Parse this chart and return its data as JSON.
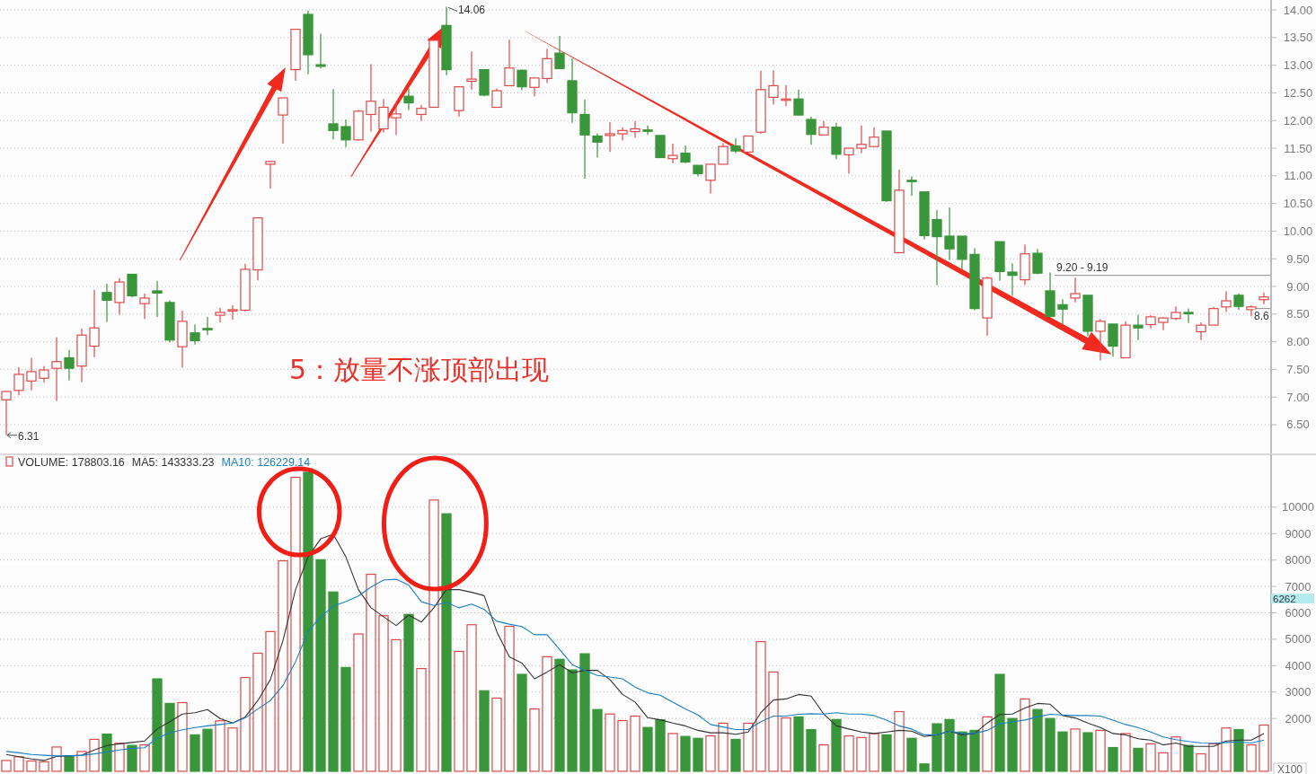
{
  "chart_data": [
    {
      "type": "candlestick",
      "categories": [
        null,
        null,
        null,
        null,
        null,
        null,
        null,
        null,
        null,
        null,
        null,
        null,
        null,
        null,
        null,
        null,
        null,
        null,
        null,
        null,
        null,
        null,
        null,
        null,
        null,
        null,
        null,
        null,
        null,
        null,
        null,
        null,
        null,
        null,
        null,
        null,
        null,
        null,
        null,
        null,
        null,
        null,
        null,
        null,
        null,
        null,
        null,
        null,
        null,
        null,
        null,
        null,
        null,
        null,
        null,
        null,
        null,
        null,
        null,
        null,
        null,
        null,
        null,
        null,
        null,
        null,
        null,
        null,
        null,
        null,
        null,
        null,
        null,
        null,
        null,
        null,
        null,
        null,
        null,
        null,
        null,
        null,
        null,
        null,
        null,
        null,
        null,
        null,
        null,
        null,
        null,
        null,
        null,
        null,
        null,
        null,
        null,
        null,
        null,
        null,
        null
      ],
      "ohlc": [
        [
          6.95,
          7.1,
          6.31,
          7.1
        ],
        [
          7.12,
          7.54,
          7.03,
          7.41
        ],
        [
          7.29,
          7.71,
          7.12,
          7.46
        ],
        [
          7.34,
          7.56,
          7.26,
          7.49
        ],
        [
          7.52,
          8.08,
          6.93,
          7.64
        ],
        [
          7.71,
          7.85,
          7.3,
          7.52
        ],
        [
          7.56,
          8.24,
          7.27,
          8.12
        ],
        [
          7.92,
          8.94,
          7.72,
          8.25
        ],
        [
          8.89,
          9.05,
          8.36,
          8.75
        ],
        [
          8.71,
          9.15,
          8.49,
          9.08
        ],
        [
          9.22,
          9.22,
          8.8,
          8.83
        ],
        [
          8.69,
          8.87,
          8.41,
          8.79
        ],
        [
          8.92,
          9.1,
          8.45,
          8.88
        ],
        [
          8.71,
          8.75,
          7.99,
          8.03
        ],
        [
          7.91,
          8.56,
          7.53,
          8.37
        ],
        [
          8.16,
          8.31,
          7.95,
          8.02
        ],
        [
          8.24,
          8.45,
          8.12,
          8.23
        ],
        [
          8.48,
          8.61,
          8.35,
          8.53
        ],
        [
          8.57,
          8.66,
          8.4,
          8.58
        ],
        [
          8.57,
          9.41,
          8.55,
          9.31
        ],
        [
          9.3,
          10.24,
          9.11,
          10.24
        ],
        [
          11.21,
          11.26,
          10.77,
          11.26
        ],
        [
          12.1,
          12.41,
          11.58,
          12.41
        ],
        [
          12.92,
          13.65,
          12.72,
          13.65
        ],
        [
          13.92,
          13.99,
          12.84,
          13.19
        ],
        [
          13.01,
          13.57,
          12.94,
          12.98
        ],
        [
          11.94,
          12.57,
          11.66,
          11.82
        ],
        [
          11.89,
          12.02,
          11.52,
          11.65
        ],
        [
          11.65,
          12.19,
          11.64,
          12.17
        ],
        [
          12.11,
          13.02,
          11.8,
          12.35
        ],
        [
          11.85,
          12.39,
          11.78,
          12.24
        ],
        [
          12.05,
          12.31,
          11.74,
          12.12
        ],
        [
          12.44,
          12.58,
          12.19,
          12.32
        ],
        [
          12.11,
          12.28,
          11.99,
          12.22
        ],
        [
          12.24,
          13.45,
          12.24,
          13.45
        ],
        [
          13.72,
          14.06,
          12.82,
          12.92
        ],
        [
          12.18,
          12.61,
          12.07,
          12.61
        ],
        [
          12.71,
          13.25,
          12.56,
          12.75
        ],
        [
          12.92,
          12.92,
          12.44,
          12.46
        ],
        [
          12.24,
          12.58,
          12.24,
          12.54
        ],
        [
          12.63,
          13.46,
          12.63,
          12.95
        ],
        [
          12.91,
          12.92,
          12.55,
          12.61
        ],
        [
          12.6,
          12.77,
          12.44,
          12.77
        ],
        [
          12.76,
          13.3,
          12.68,
          13.12
        ],
        [
          13.22,
          13.53,
          12.94,
          12.94
        ],
        [
          12.72,
          13.12,
          11.96,
          12.14
        ],
        [
          12.11,
          12.38,
          10.95,
          11.74
        ],
        [
          11.72,
          11.77,
          11.33,
          11.61
        ],
        [
          11.73,
          11.97,
          11.43,
          11.76
        ],
        [
          11.76,
          11.88,
          11.64,
          11.82
        ],
        [
          11.8,
          11.99,
          11.69,
          11.85
        ],
        [
          11.83,
          11.91,
          11.74,
          11.82
        ],
        [
          11.73,
          11.73,
          11.33,
          11.33
        ],
        [
          11.31,
          11.58,
          11.23,
          11.37
        ],
        [
          11.41,
          11.55,
          11.23,
          11.25
        ],
        [
          11.19,
          11.19,
          10.99,
          11.04
        ],
        [
          10.92,
          11.21,
          10.68,
          11.21
        ],
        [
          11.21,
          11.59,
          11.21,
          11.53
        ],
        [
          11.54,
          11.68,
          11.41,
          11.45
        ],
        [
          11.43,
          11.72,
          11.43,
          11.72
        ],
        [
          11.79,
          12.9,
          11.76,
          12.56
        ],
        [
          12.42,
          12.91,
          12.29,
          12.63
        ],
        [
          12.37,
          12.64,
          12.26,
          12.39
        ],
        [
          12.39,
          12.56,
          12.09,
          12.1
        ],
        [
          12.02,
          12.07,
          11.56,
          11.75
        ],
        [
          11.74,
          11.99,
          11.74,
          11.88
        ],
        [
          11.88,
          11.96,
          11.3,
          11.39
        ],
        [
          11.38,
          11.5,
          11.04,
          11.5
        ],
        [
          11.5,
          11.91,
          11.41,
          11.57
        ],
        [
          11.53,
          11.88,
          11.53,
          11.7
        ],
        [
          11.81,
          11.81,
          10.53,
          10.55
        ],
        [
          9.61,
          11.11,
          9.61,
          10.74
        ],
        [
          10.92,
          10.99,
          10.64,
          10.9
        ],
        [
          10.71,
          10.71,
          9.85,
          9.92
        ],
        [
          10.21,
          10.38,
          9.02,
          9.9
        ],
        [
          9.91,
          10.43,
          9.48,
          9.68
        ],
        [
          9.91,
          9.91,
          9.31,
          9.49
        ],
        [
          9.58,
          9.69,
          8.57,
          8.6
        ],
        [
          8.43,
          9.18,
          8.11,
          9.15
        ],
        [
          9.81,
          9.81,
          9.1,
          9.27
        ],
        [
          9.26,
          9.42,
          8.83,
          9.2
        ],
        [
          9.12,
          9.76,
          9.03,
          9.59
        ],
        [
          9.6,
          9.68,
          9.22,
          9.24
        ],
        [
          8.92,
          9.25,
          8.46,
          8.46
        ],
        [
          8.67,
          8.77,
          8.31,
          8.59
        ],
        [
          8.79,
          9.16,
          8.71,
          8.87
        ],
        [
          8.84,
          8.84,
          8.1,
          8.19
        ],
        [
          8.19,
          8.41,
          7.66,
          8.37
        ],
        [
          8.32,
          8.32,
          7.73,
          7.92
        ],
        [
          7.71,
          8.37,
          7.71,
          8.3
        ],
        [
          8.3,
          8.49,
          8.03,
          8.25
        ],
        [
          8.31,
          8.48,
          8.24,
          8.45
        ],
        [
          8.35,
          8.45,
          8.21,
          8.43
        ],
        [
          8.42,
          8.64,
          8.39,
          8.53
        ],
        [
          8.53,
          8.6,
          8.34,
          8.51
        ],
        [
          8.18,
          8.35,
          8.03,
          8.3
        ],
        [
          8.3,
          8.63,
          8.3,
          8.6
        ],
        [
          8.63,
          8.91,
          8.54,
          8.74
        ],
        [
          8.84,
          8.87,
          8.58,
          8.64
        ],
        [
          8.58,
          8.66,
          8.46,
          8.63
        ],
        [
          8.76,
          8.89,
          8.68,
          8.81
        ]
      ],
      "ylim": [
        5.98,
        14.18
      ],
      "yticks": [
        {
          "value": 6.5,
          "label": "6.50"
        },
        {
          "value": 7,
          "label": "7.00"
        },
        {
          "value": 7.5,
          "label": "7.50"
        },
        {
          "value": 8,
          "label": "8.00"
        },
        {
          "value": 8.5,
          "label": "8.50"
        },
        {
          "value": 9,
          "label": "9.00"
        },
        {
          "value": 9.5,
          "label": "9.50"
        },
        {
          "value": 10,
          "label": "10.00"
        },
        {
          "value": 10.5,
          "label": "10.50"
        },
        {
          "value": 11,
          "label": "11.00"
        },
        {
          "value": 11.5,
          "label": "11.50"
        },
        {
          "value": 12,
          "label": "12.00"
        },
        {
          "value": 12.5,
          "label": "12.50"
        },
        {
          "value": 13,
          "label": "13.00"
        },
        {
          "value": 13.5,
          "label": "13.50"
        },
        {
          "value": 14,
          "label": "14.00"
        }
      ],
      "grid": "y",
      "ref_lines": [
        {
          "axis": "y",
          "value": 9.2,
          "label": "9.20 - 9.19"
        },
        {
          "axis": "y",
          "value": 8.6,
          "label": "8.6"
        }
      ],
      "annotations": [
        "5：放量不涨顶部出现",
        "14.06",
        "6.31"
      ]
    },
    {
      "type": "bar",
      "categories": [
        null,
        null,
        null,
        null,
        null,
        null,
        null,
        null,
        null,
        null,
        null,
        null,
        null,
        null,
        null,
        null,
        null,
        null,
        null,
        null,
        null,
        null,
        null,
        null,
        null,
        null,
        null,
        null,
        null,
        null,
        null,
        null,
        null,
        null,
        null,
        null,
        null,
        null,
        null,
        null,
        null,
        null,
        null,
        null,
        null,
        null,
        null,
        null,
        null,
        null,
        null,
        null,
        null,
        null,
        null,
        null,
        null,
        null,
        null,
        null,
        null,
        null,
        null,
        null,
        null,
        null,
        null,
        null,
        null,
        null,
        null,
        null,
        null,
        null,
        null,
        null,
        null,
        null,
        null,
        null,
        null,
        null,
        null,
        null,
        null,
        null,
        null,
        null,
        null,
        null,
        null,
        null,
        null,
        null,
        null,
        null,
        null,
        null,
        null,
        null,
        null
      ],
      "series": [
        {
          "name": "VOLUME: 178803.16",
          "type": "bar",
          "colors": [
            "#e04848",
            "#e04848",
            "#e04848",
            "#e04848",
            "#e04848",
            "#3a963a",
            "#e04848",
            "#e04848",
            "#3a963a",
            "#e04848",
            "#3a963a",
            "#e04848",
            "#3a963a",
            "#3a963a",
            "#e04848",
            "#3a963a",
            "#3a963a",
            "#e04848",
            "#e04848",
            "#e04848",
            "#e04848",
            "#e04848",
            "#e04848",
            "#e04848",
            "#3a963a",
            "#3a963a",
            "#3a963a",
            "#3a963a",
            "#e04848",
            "#e04848",
            "#e04848",
            "#e04848",
            "#3a963a",
            "#e04848",
            "#e04848",
            "#3a963a",
            "#e04848",
            "#e04848",
            "#3a963a",
            "#e04848",
            "#e04848",
            "#3a963a",
            "#e04848",
            "#e04848",
            "#3a963a",
            "#3a963a",
            "#3a963a",
            "#3a963a",
            "#e04848",
            "#e04848",
            "#e04848",
            "#3a963a",
            "#3a963a",
            "#e04848",
            "#3a963a",
            "#3a963a",
            "#e04848",
            "#e04848",
            "#3a963a",
            "#e04848",
            "#e04848",
            "#e04848",
            "#e04848",
            "#3a963a",
            "#3a963a",
            "#e04848",
            "#3a963a",
            "#e04848",
            "#e04848",
            "#e04848",
            "#3a963a",
            "#e04848",
            "#3a963a",
            "#3a963a",
            "#3a963a",
            "#3a963a",
            "#3a963a",
            "#3a963a",
            "#e04848",
            "#3a963a",
            "#3a963a",
            "#e04848",
            "#3a963a",
            "#3a963a",
            "#3a963a",
            "#e04848",
            "#3a963a",
            "#e04848",
            "#3a963a",
            "#e04848",
            "#3a963a",
            "#e04848",
            "#e04848",
            "#e04848",
            "#3a963a",
            "#e04848",
            "#e04848",
            "#e04848",
            "#3a963a",
            "#e04848",
            "#e04848"
          ],
          "values": [
            410,
            550,
            390,
            360,
            920,
            580,
            750,
            1210,
            1410,
            1060,
            980,
            1000,
            3500,
            2570,
            2600,
            1380,
            1590,
            1910,
            1640,
            3550,
            4470,
            5290,
            7970,
            11130,
            11320,
            8010,
            6790,
            3930,
            5200,
            7460,
            5890,
            4980,
            5940,
            3890,
            10270,
            9750,
            4540,
            5550,
            3050,
            2770,
            5490,
            3670,
            2360,
            4340,
            4240,
            3840,
            4450,
            2340,
            2170,
            1920,
            2090,
            1660,
            1950,
            1430,
            1320,
            1250,
            1340,
            1820,
            1210,
            1820,
            4910,
            3760,
            2020,
            2060,
            1580,
            1000,
            1960,
            1340,
            1280,
            1430,
            1380,
            2260,
            1250,
            280,
            1800,
            1960,
            1490,
            1550,
            2060,
            3670,
            2000,
            2740,
            2340,
            2000,
            1490,
            1600,
            1460,
            1550,
            900,
            1430,
            870,
            1040,
            700,
            1300,
            980,
            660,
            1040,
            1640,
            1580,
            1000,
            1750
          ]
        },
        {
          "name": "MA5: 143333.23",
          "type": "line",
          "color": "#333333",
          "values": [
            640,
            550,
            470,
            410,
            560,
            580,
            610,
            810,
            980,
            1040,
            1090,
            1150,
            1600,
            1880,
            2170,
            2220,
            2340,
            2000,
            1830,
            2060,
            2680,
            3470,
            4950,
            6880,
            8120,
            8800,
            8970,
            8120,
            6880,
            6190,
            5850,
            5520,
            5920,
            5650,
            6190,
            6880,
            6880,
            6780,
            6650,
            5290,
            4330,
            4100,
            3500,
            3760,
            4040,
            3730,
            3820,
            3820,
            3470,
            2910,
            2620,
            2030,
            1950,
            1830,
            1720,
            1550,
            1460,
            1460,
            1400,
            1490,
            2220,
            2700,
            2740,
            2910,
            2850,
            2170,
            1720,
            1600,
            1490,
            1430,
            1490,
            1550,
            1520,
            1320,
            1380,
            1520,
            1380,
            1430,
            1830,
            2150,
            2170,
            2400,
            2570,
            2540,
            2110,
            2020,
            1830,
            1660,
            1430,
            1380,
            1230,
            1180,
            1000,
            1070,
            940,
            940,
            940,
            1150,
            1180,
            1180,
            1430
          ]
        },
        {
          "name": "MA10: 126229.14",
          "type": "line",
          "color": "#1a7fc0",
          "values": [
            750,
            700,
            640,
            610,
            580,
            580,
            610,
            660,
            730,
            810,
            870,
            890,
            1260,
            1450,
            1570,
            1660,
            1720,
            1770,
            1830,
            2020,
            2360,
            2680,
            3250,
            4150,
            5290,
            5850,
            6250,
            6420,
            6640,
            6980,
            7240,
            7270,
            7050,
            6420,
            6280,
            6390,
            6190,
            6330,
            6130,
            5680,
            5570,
            5480,
            5170,
            5170,
            4610,
            4040,
            3820,
            3630,
            3570,
            3500,
            3190,
            2970,
            2880,
            2620,
            2360,
            2130,
            1770,
            1680,
            1580,
            1580,
            1880,
            2090,
            2090,
            2160,
            2180,
            2170,
            2220,
            2170,
            2170,
            2110,
            1940,
            1720,
            1600,
            1380,
            1380,
            1520,
            1430,
            1430,
            1550,
            1800,
            1870,
            1940,
            2060,
            2160,
            2130,
            2110,
            2110,
            2090,
            1940,
            1770,
            1660,
            1490,
            1300,
            1200,
            1130,
            1070,
            1060,
            1090,
            1110,
            1070,
            1180
          ]
        }
      ],
      "ylim": [
        0,
        12000
      ],
      "yticks": [
        2000,
        3000,
        4000,
        5000,
        6000,
        7000,
        8000,
        9000,
        10000
      ],
      "ylabel": "X100",
      "grid": "y",
      "legend": "top left",
      "annotations": [
        "6262"
      ]
    }
  ]
}
